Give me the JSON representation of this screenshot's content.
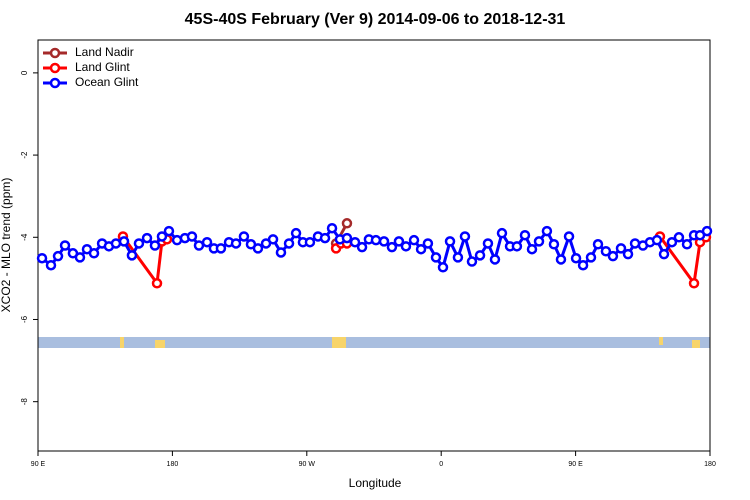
{
  "chart_data": {
    "type": "line",
    "title": "45S-40S February (Ver 9)   2014-09-06 to 2018-12-31",
    "x_label": "Longitude",
    "y_label": "XCO2 - MLO trend (ppm)",
    "xlim": [
      90,
      540
    ],
    "ylim": [
      -9.2,
      0.8
    ],
    "xticks": [
      {
        "value": 90,
        "label": "90 E"
      },
      180,
      {
        "value": 270,
        "label": "90 W"
      },
      {
        "value": 360,
        "label": "0"
      },
      {
        "value": 450,
        "label": "90 E"
      },
      {
        "value": 540,
        "label": "180"
      }
    ],
    "yticks": [
      0,
      -2,
      -4,
      -6,
      -8
    ],
    "legend": "top-left",
    "series": [
      {
        "name": "Land Nadir",
        "color": "#a52a2a",
        "x": [
          289.6,
          296.9
        ],
        "values": [
          -4.15,
          -3.66
        ]
      },
      {
        "name": "Land Glint",
        "color": "#ff0000",
        "x": [
          146.9,
          169.7,
          173.0,
          176.4,
          null,
          289.6,
          292.9,
          296.9,
          null,
          506.5,
          529.3,
          533.3,
          537.3
        ],
        "values": [
          -3.98,
          -5.12,
          -4.1,
          -4.05,
          null,
          -4.27,
          -4.15,
          -4.15,
          null,
          -3.98,
          -5.12,
          -4.12,
          -4.0
        ]
      },
      {
        "name": "Ocean Glint",
        "color": "#0000ff",
        "x": [
          92.7,
          98.7,
          103.4,
          108.1,
          113.4,
          118.1,
          122.8,
          127.5,
          132.9,
          137.5,
          142.2,
          147.6,
          152.9,
          157.6,
          163.0,
          168.3,
          173.0,
          177.7,
          183.1,
          188.4,
          193.1,
          197.8,
          203.2,
          207.8,
          212.5,
          217.9,
          222.6,
          227.9,
          232.6,
          237.3,
          242.7,
          247.4,
          252.7,
          258.1,
          262.8,
          267.4,
          272.1,
          277.5,
          282.2,
          286.9,
          292.2,
          296.9,
          302.3,
          307.0,
          311.6,
          316.3,
          321.7,
          327.0,
          331.7,
          336.4,
          341.8,
          346.5,
          351.1,
          356.5,
          361.2,
          365.9,
          371.2,
          375.9,
          380.6,
          386.0,
          391.3,
          396.0,
          400.7,
          406.1,
          410.7,
          416.1,
          420.8,
          425.5,
          430.8,
          435.5,
          440.2,
          445.6,
          450.3,
          455.0,
          460.3,
          465.0,
          470.3,
          475.0,
          480.4,
          485.1,
          489.8,
          495.1,
          499.8,
          504.5,
          509.2,
          514.5,
          519.2,
          524.6,
          529.3,
          533.3,
          538.0
        ],
        "values": [
          -4.51,
          -4.68,
          -4.46,
          -4.2,
          -4.39,
          -4.49,
          -4.29,
          -4.39,
          -4.15,
          -4.22,
          -4.15,
          -4.1,
          -4.44,
          -4.15,
          -4.02,
          -4.2,
          -3.98,
          -3.85,
          -4.07,
          -4.02,
          -3.98,
          -4.2,
          -4.12,
          -4.27,
          -4.27,
          -4.12,
          -4.15,
          -3.98,
          -4.17,
          -4.27,
          -4.15,
          -4.05,
          -4.37,
          -4.15,
          -3.9,
          -4.12,
          -4.12,
          -3.98,
          -4.02,
          -3.78,
          -4.05,
          -4.02,
          -4.12,
          -4.24,
          -4.05,
          -4.07,
          -4.1,
          -4.24,
          -4.1,
          -4.22,
          -4.07,
          -4.29,
          -4.15,
          -4.49,
          -4.73,
          -4.1,
          -4.49,
          -3.98,
          -4.59,
          -4.44,
          -4.15,
          -4.54,
          -3.9,
          -4.22,
          -4.22,
          -3.95,
          -4.29,
          -4.1,
          -3.85,
          -4.17,
          -4.54,
          -3.98,
          -4.51,
          -4.68,
          -4.49,
          -4.17,
          -4.34,
          -4.46,
          -4.27,
          -4.41,
          -4.15,
          -4.2,
          -4.12,
          -4.07,
          -4.41,
          -4.12,
          -4.0,
          -4.17,
          -3.95,
          -3.95,
          -3.85
        ]
      }
    ]
  }
}
